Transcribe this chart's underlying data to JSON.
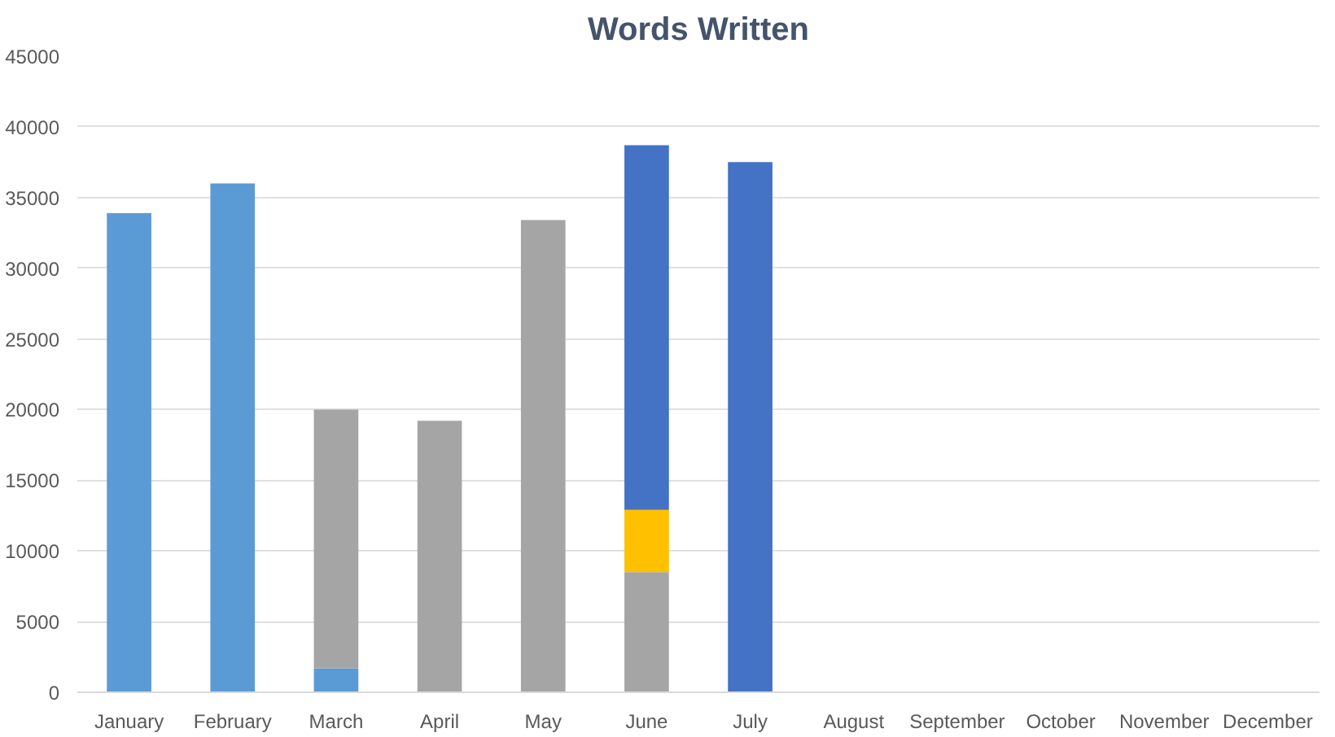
{
  "chart_data": {
    "type": "bar",
    "title": "Words Written",
    "stacked": true,
    "categories": [
      "January",
      "February",
      "March",
      "April",
      "May",
      "June",
      "July",
      "August",
      "September",
      "October",
      "November",
      "December"
    ],
    "series": [
      {
        "color": "#5b9bd5",
        "values": [
          33900,
          36000,
          1700,
          null,
          null,
          null,
          null,
          null,
          null,
          null,
          null,
          null
        ]
      },
      {
        "color": "#a5a5a5",
        "values": [
          null,
          null,
          18300,
          19200,
          33400,
          8500,
          null,
          null,
          null,
          null,
          null,
          null
        ]
      },
      {
        "color": "#ffc000",
        "values": [
          null,
          null,
          null,
          null,
          null,
          4400,
          null,
          null,
          null,
          null,
          null,
          null
        ]
      },
      {
        "color": "#4472c4",
        "values": [
          null,
          null,
          null,
          null,
          null,
          25800,
          37500,
          null,
          null,
          null,
          null,
          null
        ]
      }
    ],
    "ylim": [
      0,
      45000
    ],
    "yticks": [
      0,
      5000,
      10000,
      15000,
      20000,
      25000,
      30000,
      35000,
      40000,
      45000
    ],
    "grid": "y"
  }
}
